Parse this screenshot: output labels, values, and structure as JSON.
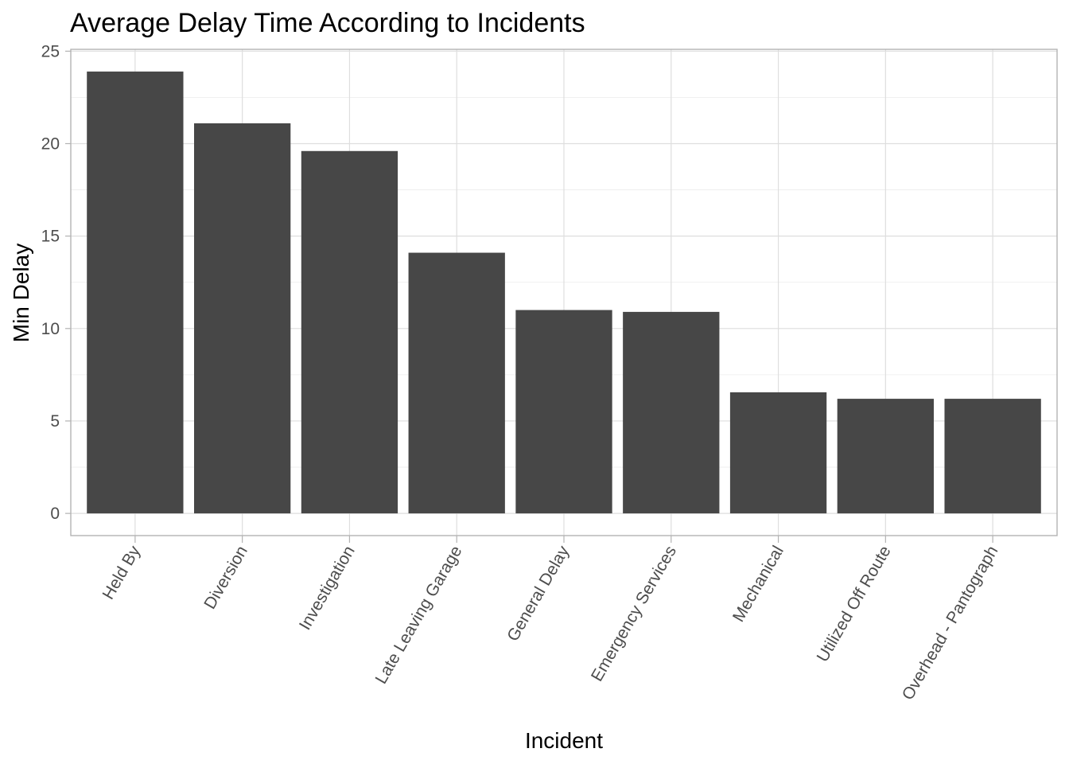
{
  "chart_data": {
    "type": "bar",
    "title": "Average Delay Time According to Incidents",
    "xlabel": "Incident",
    "ylabel": "Min Delay",
    "categories": [
      "Held By",
      "Diversion",
      "Investigation",
      "Late Leaving Garage",
      "General Delay",
      "Emergency Services",
      "Mechanical",
      "Utilized Off Route",
      "Overhead - Pantograph"
    ],
    "values": [
      23.9,
      21.1,
      19.6,
      14.1,
      11.0,
      10.9,
      6.55,
      6.2,
      6.2
    ],
    "ylim": [
      -1.2,
      25.1
    ],
    "yticks": [
      "0",
      "5",
      "10",
      "15",
      "20",
      "25"
    ],
    "grid": true,
    "bar_color": "#474747",
    "legend": "none"
  }
}
